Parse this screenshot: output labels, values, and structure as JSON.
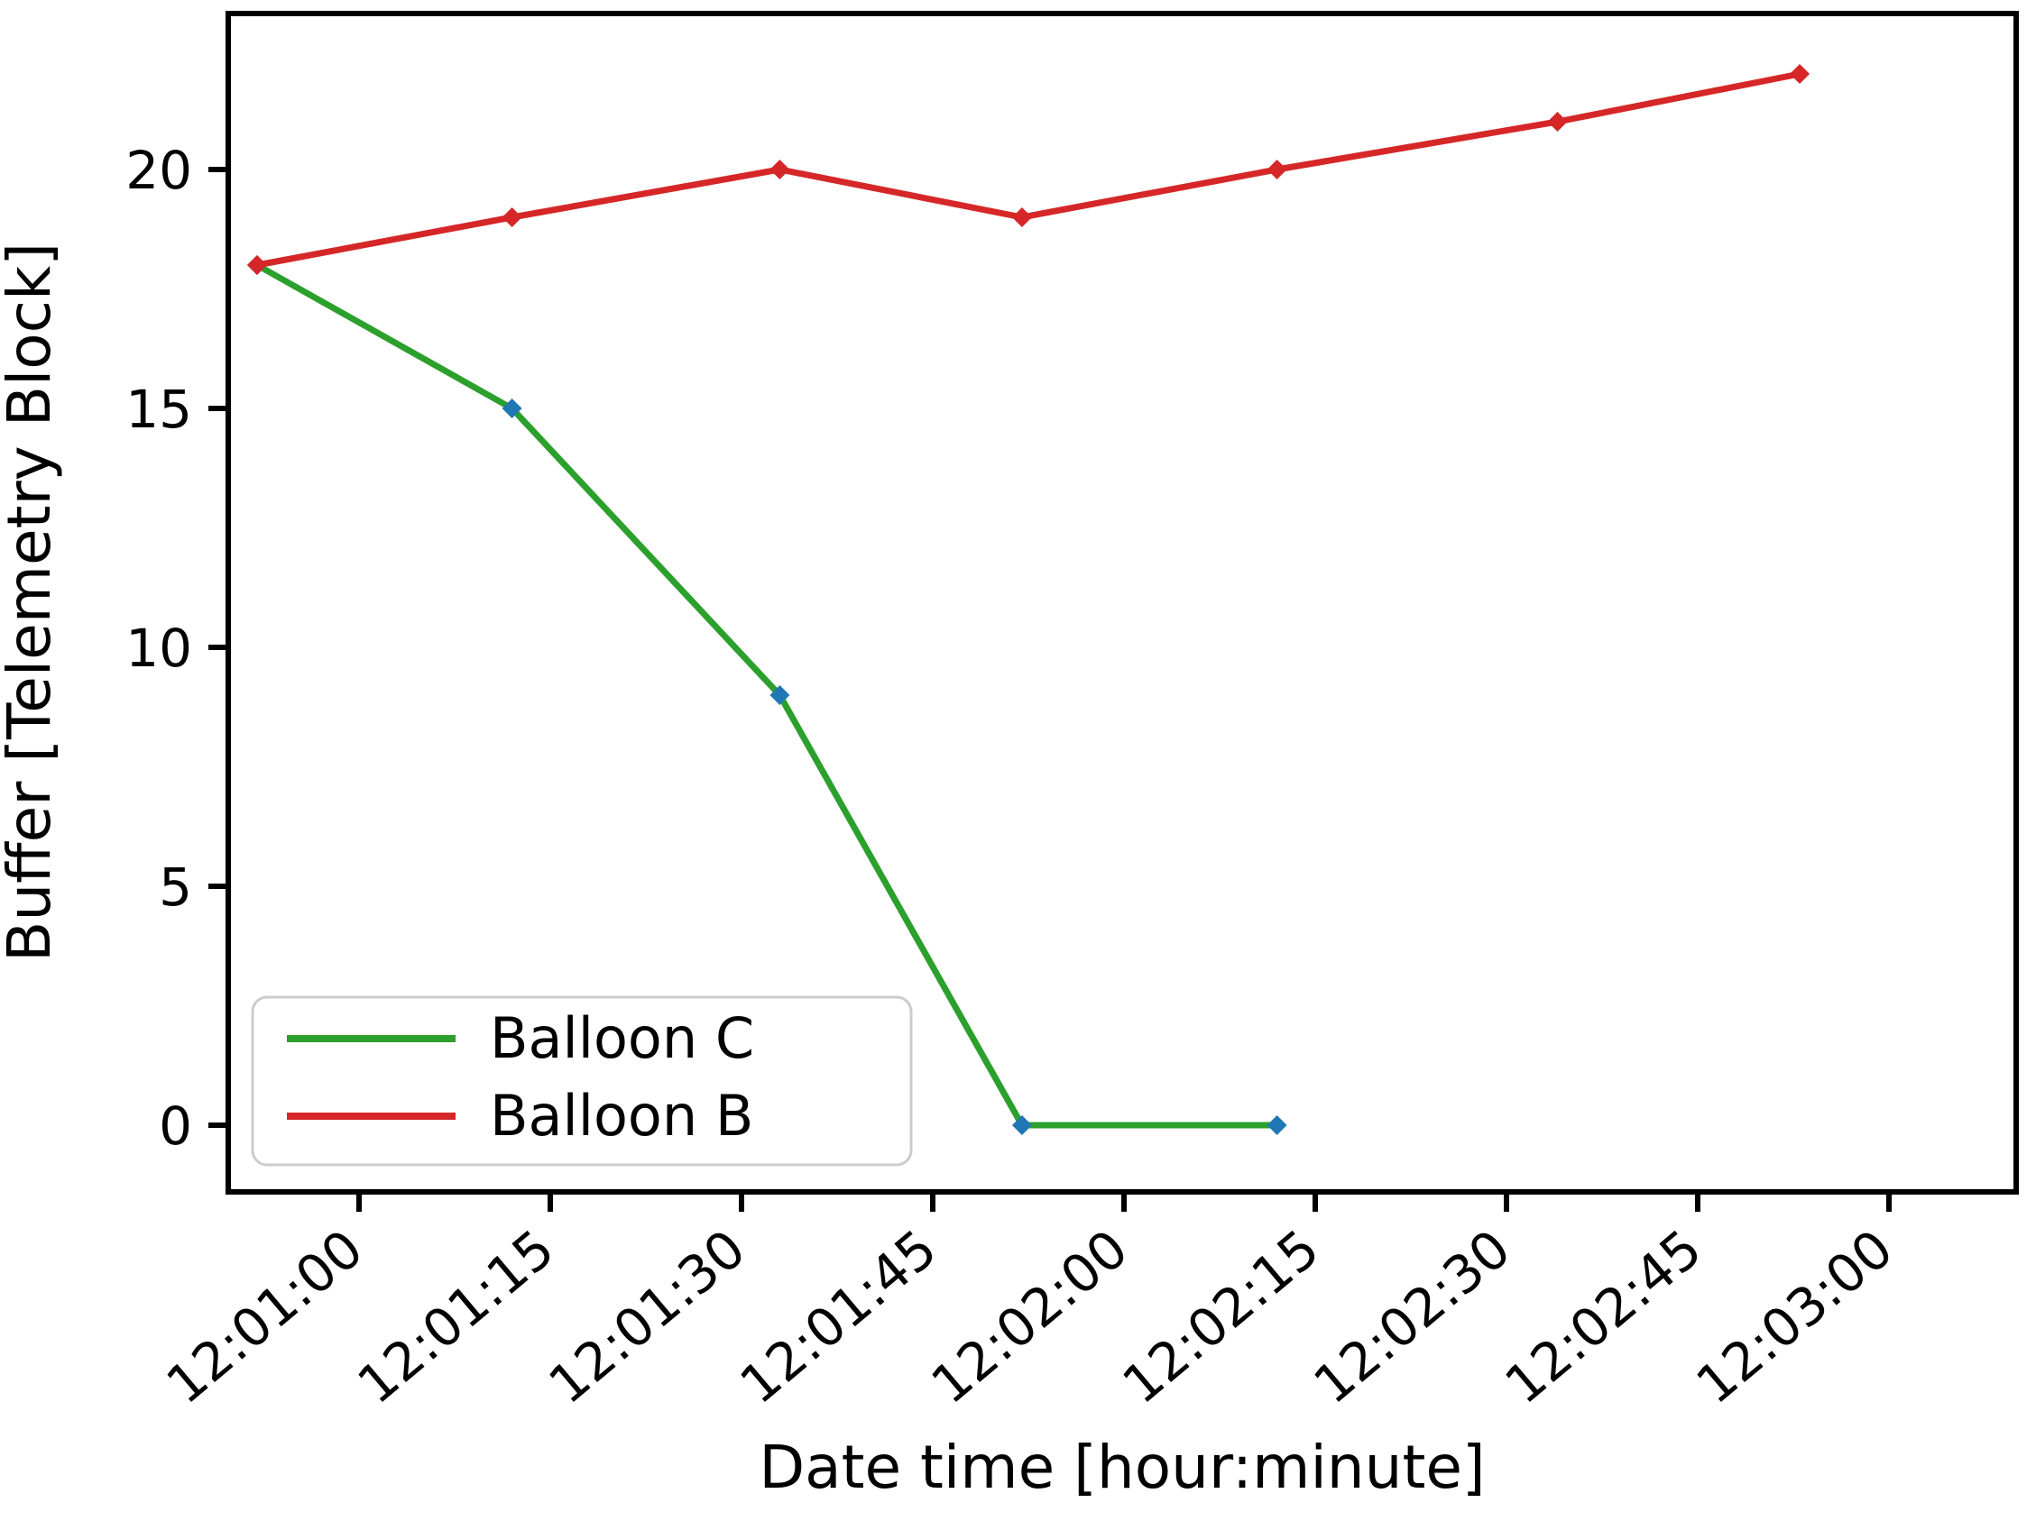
{
  "figure": {
    "background": "#ffffff",
    "spine_color": "#000000"
  },
  "chart_data": {
    "type": "line",
    "title": "",
    "xlabel": "Date time [hour:minute]",
    "ylabel": "Buffer [Telemetry Block]",
    "grid": false,
    "x_axis": {
      "unit": "seconds relative to 12:01:00",
      "tick_interval_seconds": 15,
      "ticks": [
        {
          "offset_s": 0,
          "label": "12:01:00"
        },
        {
          "offset_s": 15,
          "label": "12:01:15"
        },
        {
          "offset_s": 30,
          "label": "12:01:30"
        },
        {
          "offset_s": 45,
          "label": "12:01:45"
        },
        {
          "offset_s": 60,
          "label": "12:02:00"
        },
        {
          "offset_s": 75,
          "label": "12:02:15"
        },
        {
          "offset_s": 90,
          "label": "12:02:30"
        },
        {
          "offset_s": 105,
          "label": "12:02:45"
        },
        {
          "offset_s": 120,
          "label": "12:03:00"
        }
      ],
      "xlim_seconds": [
        -10.3,
        130
      ],
      "tick_label_rotation_deg": 40
    },
    "y_axis": {
      "ticks": [
        0,
        5,
        10,
        15,
        20
      ],
      "ylim": [
        -1.4,
        23.3
      ]
    },
    "series": [
      {
        "name": "Balloon C",
        "color": "#2ca02c",
        "marker_color": "#1f77b4",
        "marker": "diamond",
        "x_offsets_s": [
          -8,
          12,
          33,
          52,
          72
        ],
        "values": [
          18,
          15,
          9,
          0,
          0
        ]
      },
      {
        "name": "Balloon B",
        "color": "#d62728",
        "marker_color": "#d62728",
        "marker": "diamond",
        "x_offsets_s": [
          -8,
          12,
          33,
          52,
          72,
          94,
          113
        ],
        "values": [
          18,
          19,
          20,
          19,
          20,
          21,
          22
        ]
      }
    ],
    "legend": {
      "location": "lower left",
      "entries": [
        "Balloon C",
        "Balloon B"
      ],
      "border_color": "#cccccc",
      "background": "#ffffff"
    }
  }
}
